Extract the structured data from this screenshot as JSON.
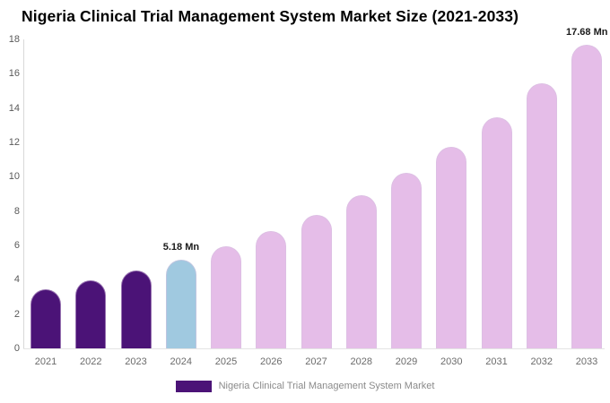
{
  "page": {
    "background": "#ffffff"
  },
  "chart_data": {
    "type": "bar",
    "title": "Nigeria Clinical Trial Management System Market Size (2021-2033)",
    "unit": "Mn",
    "categories": [
      "2021",
      "2022",
      "2023",
      "2024",
      "2025",
      "2026",
      "2027",
      "2028",
      "2029",
      "2030",
      "2031",
      "2032",
      "2033"
    ],
    "values": [
      3.44,
      3.94,
      4.52,
      5.18,
      5.94,
      6.81,
      7.8,
      8.94,
      10.25,
      11.75,
      13.47,
      15.43,
      17.68
    ],
    "bar_roles": [
      "historical",
      "historical",
      "historical",
      "current",
      "forecast",
      "forecast",
      "forecast",
      "forecast",
      "forecast",
      "forecast",
      "forecast",
      "forecast",
      "forecast"
    ],
    "palette": {
      "historical": "#4B1377",
      "current": "#A0C9E0",
      "forecast": "#E5BDE8"
    },
    "annotations": [
      {
        "category": "2024",
        "text": "5.18 Mn"
      },
      {
        "category": "2033",
        "text": "17.68 Mn"
      }
    ],
    "xlabel": "",
    "ylabel": "",
    "ylim": [
      0,
      18
    ],
    "y_ticks": [
      0,
      2,
      4,
      6,
      8,
      10,
      12,
      14,
      16,
      18
    ],
    "grid": "none",
    "legend": {
      "position": "bottom",
      "label": "Nigeria Clinical Trial Management System Market",
      "swatch_color": "#4B1377"
    }
  },
  "colors": {
    "title_text": "#000000",
    "axis_line": "#d9d9d9",
    "ytick_text": "#595959",
    "xtick_text": "#6b6b6b",
    "annotation_text": "#1a1a1a",
    "legend_text": "#8a8a8a"
  }
}
